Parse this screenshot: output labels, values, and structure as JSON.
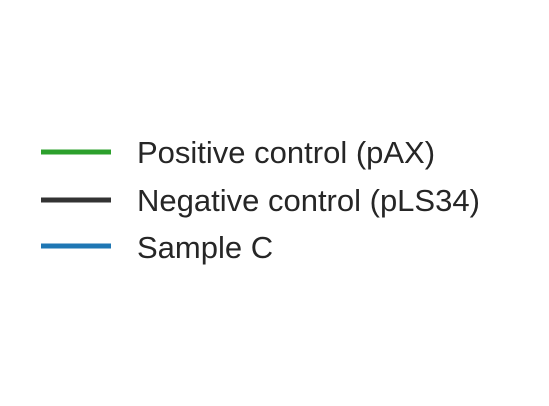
{
  "chart_data": {
    "type": "line",
    "title": "",
    "xlabel": "",
    "ylabel": "",
    "grid": false,
    "legend_placement": "center",
    "series": [
      {
        "name": "Positive control (pAX)",
        "color": "#2ca02c",
        "marker": "line"
      },
      {
        "name": "Negative control (pLS34)",
        "color": "#333333",
        "marker": "line"
      },
      {
        "name": "Sample C",
        "color": "#1f77b4",
        "marker": "line"
      }
    ]
  }
}
